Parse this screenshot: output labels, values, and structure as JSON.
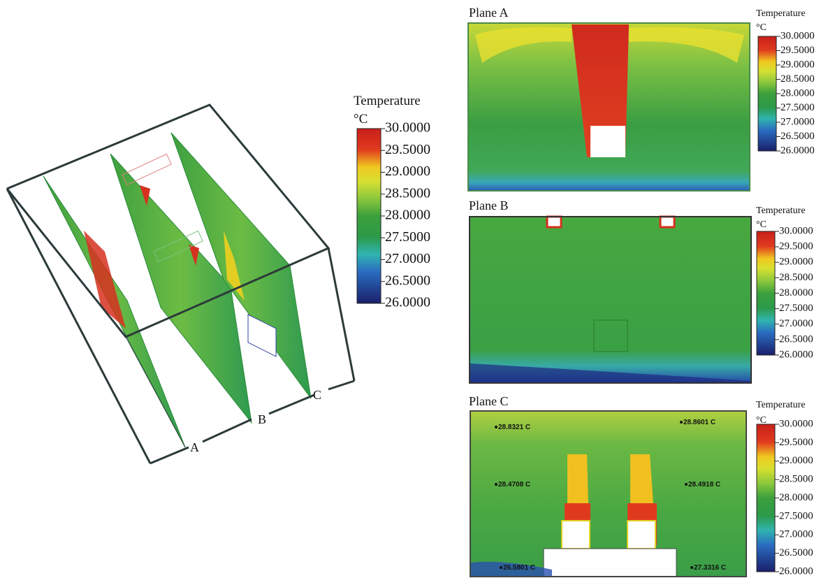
{
  "overview": {
    "plane_labels": [
      "A",
      "B",
      "C"
    ]
  },
  "legends": [
    {
      "title": "Temperature",
      "unit": "°C",
      "ticks": [
        "30.0000",
        "29.5000",
        "29.0000",
        "28.5000",
        "28.0000",
        "27.5000",
        "27.0000",
        "26.5000",
        "26.0000"
      ]
    },
    {
      "title": "Temperature",
      "unit": "°C",
      "ticks": [
        "30.0000",
        "29.5000",
        "29.0000",
        "28.5000",
        "28.0000",
        "27.5000",
        "27.0000",
        "26.5000",
        "26.0000"
      ]
    },
    {
      "title": "Temperature",
      "unit": "°C",
      "ticks": [
        "30.0000",
        "29.5000",
        "29.0000",
        "28.5000",
        "28.0000",
        "27.5000",
        "27.0000",
        "26.5000",
        "26.0000"
      ]
    },
    {
      "title": "Temperature",
      "unit": "°C",
      "ticks": [
        "30.0000",
        "29.5000",
        "29.0000",
        "28.5000",
        "28.0000",
        "27.5000",
        "27.0000",
        "26.5000",
        "26.0000"
      ]
    }
  ],
  "panels": [
    {
      "title": "Plane A"
    },
    {
      "title": "Plane B"
    },
    {
      "title": "Plane C",
      "probes": [
        "28.8321 C",
        "28.8601 C",
        "28.4708 C",
        "28.4918 C",
        "26.5801 C",
        "27.3316 C"
      ]
    }
  ]
}
